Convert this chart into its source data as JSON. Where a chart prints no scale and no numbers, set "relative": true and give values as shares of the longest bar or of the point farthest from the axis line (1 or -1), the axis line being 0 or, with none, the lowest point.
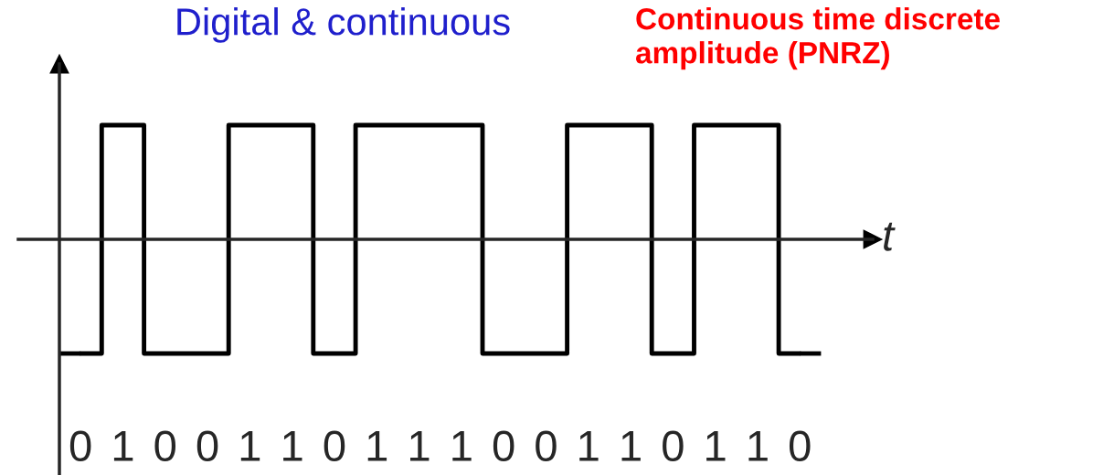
{
  "chart_data": {
    "type": "step",
    "title": "Digital & continuous",
    "xlabel": "t",
    "relative": true,
    "grid": false,
    "legend": false,
    "line_style": "solid",
    "annotations": [
      "Continuous time discrete amplitude (PNRZ)"
    ],
    "categories": [
      "0",
      "1",
      "0",
      "0",
      "1",
      "1",
      "0",
      "1",
      "1",
      "1",
      "0",
      "0",
      "1",
      "1",
      "0",
      "1",
      "1",
      "0"
    ],
    "series": [
      {
        "color": "#000000",
        "values": [
          -1,
          1,
          -1,
          -1,
          1,
          1,
          -1,
          1,
          1,
          1,
          -1,
          -1,
          1,
          1,
          -1,
          1,
          1,
          -1
        ]
      }
    ]
  }
}
